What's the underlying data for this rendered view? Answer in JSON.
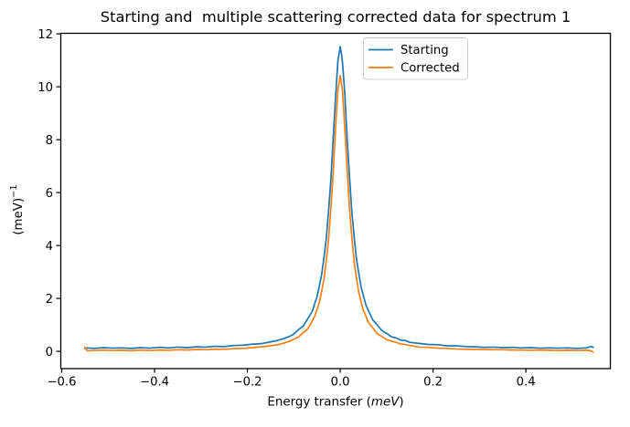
{
  "figure": {
    "background": "#ffffff"
  },
  "chart_data": {
    "type": "line",
    "title": "Starting and  multiple scattering corrected data for spectrum 1",
    "xlabel": {
      "prefix": "Energy transfer (",
      "italic": "meV",
      "suffix": ")"
    },
    "ylabel": {
      "base": "(meV)",
      "sup": "−1"
    },
    "xlim": [
      -0.602,
      0.582
    ],
    "ylim": [
      -0.653,
      12.02
    ],
    "grid": false,
    "legend": {
      "location": "upper center",
      "frame": true,
      "edge_color": "#cccccc"
    },
    "axis_color": "#000000",
    "x_ticks": [
      {
        "v": -0.6,
        "label": "−0.6"
      },
      {
        "v": -0.4,
        "label": "−0.4"
      },
      {
        "v": -0.2,
        "label": "−0.2"
      },
      {
        "v": 0.0,
        "label": "0.0"
      },
      {
        "v": 0.2,
        "label": "0.2"
      },
      {
        "v": 0.4,
        "label": "0.4"
      }
    ],
    "y_ticks": [
      {
        "v": 0,
        "label": "0"
      },
      {
        "v": 2,
        "label": "2"
      },
      {
        "v": 4,
        "label": "4"
      },
      {
        "v": 6,
        "label": "6"
      },
      {
        "v": 8,
        "label": "8"
      },
      {
        "v": 10,
        "label": "10"
      },
      {
        "v": 12,
        "label": "12"
      }
    ],
    "series": [
      {
        "name": "Starting",
        "color": "#1f77b4",
        "points": [
          [
            -0.55,
            0.1
          ],
          [
            -0.545,
            0.13
          ],
          [
            -0.53,
            0.11
          ],
          [
            -0.51,
            0.14
          ],
          [
            -0.49,
            0.12
          ],
          [
            -0.47,
            0.13
          ],
          [
            -0.45,
            0.11
          ],
          [
            -0.43,
            0.14
          ],
          [
            -0.41,
            0.12
          ],
          [
            -0.39,
            0.15
          ],
          [
            -0.37,
            0.13
          ],
          [
            -0.35,
            0.16
          ],
          [
            -0.33,
            0.14
          ],
          [
            -0.31,
            0.17
          ],
          [
            -0.29,
            0.16
          ],
          [
            -0.27,
            0.19
          ],
          [
            -0.25,
            0.18
          ],
          [
            -0.23,
            0.22
          ],
          [
            -0.21,
            0.23
          ],
          [
            -0.19,
            0.27
          ],
          [
            -0.17,
            0.29
          ],
          [
            -0.15,
            0.36
          ],
          [
            -0.14,
            0.39
          ],
          [
            -0.13,
            0.44
          ],
          [
            -0.12,
            0.49
          ],
          [
            -0.11,
            0.56
          ],
          [
            -0.1,
            0.65
          ],
          [
            -0.09,
            0.82
          ],
          [
            -0.08,
            0.95
          ],
          [
            -0.07,
            1.23
          ],
          [
            -0.06,
            1.52
          ],
          [
            -0.055,
            1.8
          ],
          [
            -0.05,
            2.06
          ],
          [
            -0.045,
            2.47
          ],
          [
            -0.04,
            2.9
          ],
          [
            -0.035,
            3.55
          ],
          [
            -0.03,
            4.27
          ],
          [
            -0.025,
            5.33
          ],
          [
            -0.02,
            6.52
          ],
          [
            -0.015,
            8.1
          ],
          [
            -0.01,
            9.61
          ],
          [
            -0.005,
            10.98
          ],
          [
            -0.002,
            11.3
          ],
          [
            0.0,
            11.52
          ],
          [
            0.003,
            11.2
          ],
          [
            0.005,
            10.9
          ],
          [
            0.01,
            9.7
          ],
          [
            0.015,
            8.02
          ],
          [
            0.02,
            6.6
          ],
          [
            0.025,
            5.27
          ],
          [
            0.03,
            4.33
          ],
          [
            0.035,
            3.49
          ],
          [
            0.04,
            2.95
          ],
          [
            0.045,
            2.43
          ],
          [
            0.05,
            2.1
          ],
          [
            0.055,
            1.77
          ],
          [
            0.06,
            1.57
          ],
          [
            0.07,
            1.19
          ],
          [
            0.08,
            0.99
          ],
          [
            0.09,
            0.78
          ],
          [
            0.1,
            0.68
          ],
          [
            0.11,
            0.55
          ],
          [
            0.12,
            0.51
          ],
          [
            0.13,
            0.42
          ],
          [
            0.14,
            0.41
          ],
          [
            0.15,
            0.34
          ],
          [
            0.17,
            0.3
          ],
          [
            0.19,
            0.26
          ],
          [
            0.21,
            0.25
          ],
          [
            0.23,
            0.21
          ],
          [
            0.25,
            0.21
          ],
          [
            0.27,
            0.18
          ],
          [
            0.29,
            0.17
          ],
          [
            0.31,
            0.15
          ],
          [
            0.33,
            0.16
          ],
          [
            0.35,
            0.14
          ],
          [
            0.37,
            0.15
          ],
          [
            0.39,
            0.13
          ],
          [
            0.41,
            0.14
          ],
          [
            0.43,
            0.12
          ],
          [
            0.45,
            0.13
          ],
          [
            0.47,
            0.12
          ],
          [
            0.49,
            0.13
          ],
          [
            0.51,
            0.11
          ],
          [
            0.53,
            0.13
          ],
          [
            0.54,
            0.18
          ],
          [
            0.545,
            0.15
          ]
        ]
      },
      {
        "name": "Corrected",
        "color": "#ff7f0e",
        "points": [
          [
            -0.55,
            0.15
          ],
          [
            -0.545,
            0.02
          ],
          [
            -0.53,
            0.03
          ],
          [
            -0.51,
            0.05
          ],
          [
            -0.49,
            0.03
          ],
          [
            -0.47,
            0.04
          ],
          [
            -0.45,
            0.02
          ],
          [
            -0.43,
            0.05
          ],
          [
            -0.41,
            0.03
          ],
          [
            -0.39,
            0.05
          ],
          [
            -0.37,
            0.04
          ],
          [
            -0.35,
            0.06
          ],
          [
            -0.33,
            0.05
          ],
          [
            -0.31,
            0.07
          ],
          [
            -0.29,
            0.06
          ],
          [
            -0.27,
            0.08
          ],
          [
            -0.25,
            0.08
          ],
          [
            -0.23,
            0.1
          ],
          [
            -0.21,
            0.11
          ],
          [
            -0.19,
            0.14
          ],
          [
            -0.17,
            0.17
          ],
          [
            -0.15,
            0.21
          ],
          [
            -0.14,
            0.24
          ],
          [
            -0.13,
            0.27
          ],
          [
            -0.12,
            0.32
          ],
          [
            -0.11,
            0.38
          ],
          [
            -0.1,
            0.46
          ],
          [
            -0.09,
            0.54
          ],
          [
            -0.08,
            0.7
          ],
          [
            -0.07,
            0.85
          ],
          [
            -0.06,
            1.15
          ],
          [
            -0.055,
            1.32
          ],
          [
            -0.05,
            1.58
          ],
          [
            -0.045,
            1.84
          ],
          [
            -0.04,
            2.27
          ],
          [
            -0.035,
            2.73
          ],
          [
            -0.03,
            3.44
          ],
          [
            -0.025,
            4.25
          ],
          [
            -0.02,
            5.45
          ],
          [
            -0.015,
            6.81
          ],
          [
            -0.01,
            8.45
          ],
          [
            -0.005,
            9.88
          ],
          [
            0.0,
            10.42
          ],
          [
            0.005,
            9.85
          ],
          [
            0.01,
            8.4
          ],
          [
            0.015,
            6.87
          ],
          [
            0.02,
            5.4
          ],
          [
            0.025,
            4.3
          ],
          [
            0.03,
            3.38
          ],
          [
            0.035,
            2.77
          ],
          [
            0.04,
            2.23
          ],
          [
            0.045,
            1.88
          ],
          [
            0.05,
            1.54
          ],
          [
            0.055,
            1.35
          ],
          [
            0.06,
            1.12
          ],
          [
            0.07,
            0.89
          ],
          [
            0.08,
            0.66
          ],
          [
            0.09,
            0.56
          ],
          [
            0.1,
            0.44
          ],
          [
            0.11,
            0.39
          ],
          [
            0.12,
            0.34
          ],
          [
            0.13,
            0.28
          ],
          [
            0.14,
            0.26
          ],
          [
            0.15,
            0.22
          ],
          [
            0.17,
            0.16
          ],
          [
            0.19,
            0.15
          ],
          [
            0.21,
            0.12
          ],
          [
            0.23,
            0.11
          ],
          [
            0.25,
            0.09
          ],
          [
            0.27,
            0.08
          ],
          [
            0.29,
            0.07
          ],
          [
            0.31,
            0.07
          ],
          [
            0.33,
            0.06
          ],
          [
            0.35,
            0.06
          ],
          [
            0.37,
            0.05
          ],
          [
            0.39,
            0.05
          ],
          [
            0.41,
            0.04
          ],
          [
            0.43,
            0.05
          ],
          [
            0.45,
            0.04
          ],
          [
            0.47,
            0.03
          ],
          [
            0.49,
            0.04
          ],
          [
            0.51,
            0.03
          ],
          [
            0.53,
            0.04
          ],
          [
            0.54,
            0.02
          ],
          [
            0.545,
            -0.03
          ]
        ]
      }
    ]
  }
}
